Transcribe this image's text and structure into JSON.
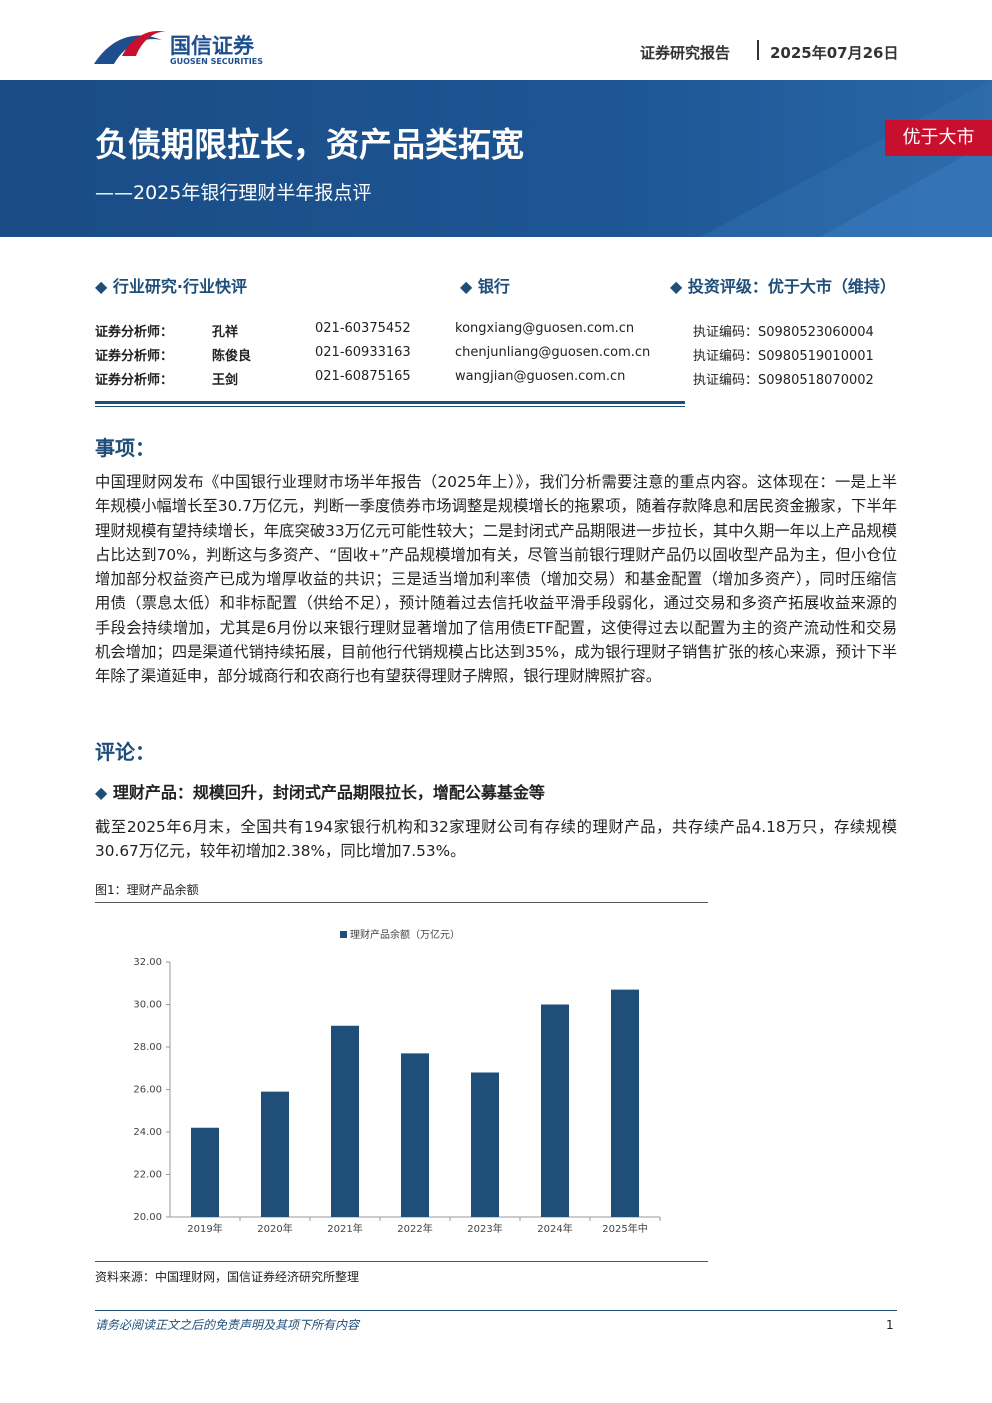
{
  "header": {
    "company": "国信证券",
    "company_en": "GUOSEN SECURITIES",
    "report_type": "证券研究报告",
    "date": "2025年07月26日"
  },
  "banner": {
    "title": "负债期限拉长，资产品类拓宽",
    "subtitle": "——2025年银行理财半年报点评",
    "rating_tag": "优于大市"
  },
  "meta": {
    "sector": "行业研究·行业快评",
    "industry": "银行",
    "rating": "投资评级：优于大市（维持）"
  },
  "analysts": [
    {
      "role": "证券分析师：",
      "name": "孔祥",
      "phone": "021-60375452",
      "email": "kongxiang@guosen.com.cn",
      "license": "执证编码：S0980523060004"
    },
    {
      "role": "证券分析师：",
      "name": "陈俊良",
      "phone": "021-60933163",
      "email": "chenjunliang@guosen.com.cn",
      "license": "执证编码：S0980519010001"
    },
    {
      "role": "证券分析师：",
      "name": "王剑",
      "phone": "021-60875165",
      "email": "wangjian@guosen.com.cn",
      "license": "执证编码：S0980518070002"
    }
  ],
  "sections": [
    {
      "heading": "事项：",
      "paragraphs": [
        "中国理财网发布《中国银行业理财市场半年报告（2025年上）》，我们分析需要注意的重点内容。这体现在：一是上半年规模小幅增长至30.7万亿元，判断一季度债券市场调整是规模增长的拖累项，随着存款降息和居民资金搬家，下半年理财规模有望持续增长，年底突破33万亿元可能性较大；二是封闭式产品期限进一步拉长，其中久期一年以上产品规模占比达到70%，判断这与多资产、“固收+”产品规模增加有关，尽管当前银行理财产品仍以固收型产品为主，但小仓位增加部分权益资产已成为增厚收益的共识；三是适当增加利率债（增加交易）和基金配置（增加多资产），同时压缩信用债（票息太低）和非标配置（供给不足），预计随着过去信托收益平滑手段弱化，通过交易和多资产拓展收益来源的手段会持续增加，尤其是6月份以来银行理财显著增加了信用债ETF配置，这使得过去以配置为主的资产流动性和交易机会增加；四是渠道代销持续拓展，目前他行代销规模占比达到35%，成为银行理财子销售扩张的核心来源，预计下半年除了渠道延申，部分城商行和农商行也有望获得理财子牌照，银行理财牌照扩容。"
      ]
    },
    {
      "heading": "评论：",
      "subheading": "理财产品：规模回升，封闭式产品期限拉长，增配公募基金等",
      "paragraphs": [
        "截至2025年6月末，全国共有194家银行机构和32家理财公司有存续的理财产品，共存续产品4.18万只，存续规模30.67万亿元，较年初增加2.38%，同比增加7.53%。"
      ]
    }
  ],
  "figure": {
    "caption": "图1：理财产品余额",
    "source": "资料来源：中国理财网，国信证券经济研究所整理"
  },
  "chart_data": {
    "type": "bar",
    "categories": [
      "2019年",
      "2020年",
      "2021年",
      "2022年",
      "2023年",
      "2024年",
      "2025年中"
    ],
    "series": [
      {
        "name": "理财产品余额（万亿元）",
        "color": "#1f4e79",
        "values": [
          24.2,
          25.9,
          29.0,
          27.7,
          26.8,
          30.0,
          30.7
        ]
      }
    ],
    "ylim": [
      20,
      32
    ],
    "yticks": [
      {
        "value": 20,
        "label": "20.00"
      },
      {
        "value": 22,
        "label": "22.00"
      },
      {
        "value": 24,
        "label": "24.00"
      },
      {
        "value": 26,
        "label": "26.00"
      },
      {
        "value": 28,
        "label": "28.00"
      },
      {
        "value": 30,
        "label": "30.00"
      },
      {
        "value": 32,
        "label": "32.00"
      }
    ],
    "grid": false,
    "legend": "top"
  },
  "footer": {
    "disclaimer": "请务必阅读正文之后的免责声明及其项下所有内容",
    "page": 1
  }
}
